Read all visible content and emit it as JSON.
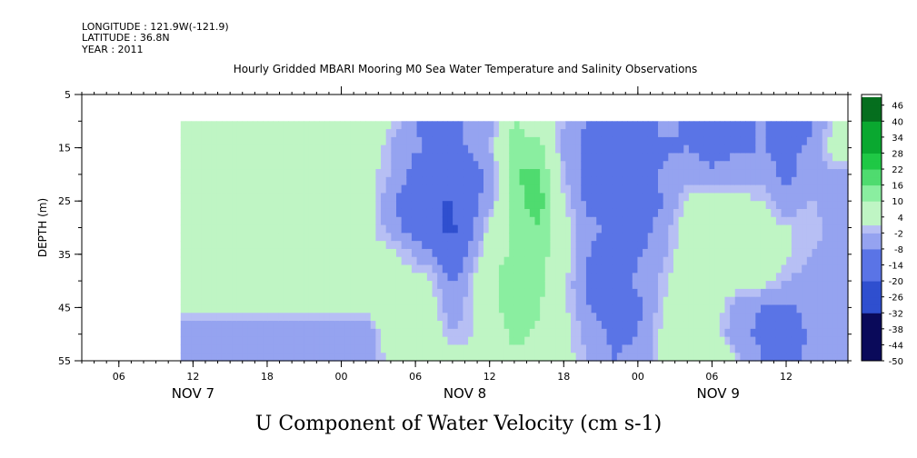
{
  "header": {
    "longitude": "LONGITUDE : 121.9W(-121.9)",
    "latitude": "LATITUDE : 36.8N",
    "year": "YEAR : 2011"
  },
  "chart_data": {
    "type": "heatmap",
    "title": "Hourly Gridded MBARI Mooring M0 Sea Water Temperature and Salinity Observations",
    "xlabel": "U Component of Water Velocity (cm s-1)",
    "ylabel": "DEPTH (m)",
    "x_range_hours": [
      0,
      62
    ],
    "x_ticks": [
      {
        "h": 3,
        "label": "06"
      },
      {
        "h": 9,
        "label": "12"
      },
      {
        "h": 15,
        "label": "18"
      },
      {
        "h": 21,
        "label": "00"
      },
      {
        "h": 27,
        "label": "06"
      },
      {
        "h": 33,
        "label": "12"
      },
      {
        "h": 39,
        "label": "18"
      },
      {
        "h": 45,
        "label": "00"
      },
      {
        "h": 51,
        "label": "06"
      },
      {
        "h": 57,
        "label": "12"
      }
    ],
    "day_labels": [
      {
        "h": 9,
        "label": "NOV  7"
      },
      {
        "h": 31,
        "label": "NOV  8"
      },
      {
        "h": 51.5,
        "label": "NOV  9"
      }
    ],
    "y_range": [
      5,
      55
    ],
    "y_ticks": [
      5,
      15,
      25,
      35,
      45,
      55
    ],
    "data_depth_range": [
      10,
      55
    ],
    "data_time_start_hour": 8,
    "colorbar": {
      "min": -50,
      "max": 50,
      "step": 3,
      "labels": [
        "46",
        "40",
        "34",
        "28",
        "22",
        "16",
        "10",
        "4",
        "-2",
        "-8",
        "-14",
        "-20",
        "-26",
        "-32",
        "-38",
        "-44",
        "-50"
      ]
    },
    "depths": [
      10,
      15,
      20,
      25,
      30,
      35,
      40,
      45,
      50,
      55
    ],
    "times": [
      8,
      14,
      20,
      23,
      25,
      28,
      30,
      33,
      35,
      37,
      39,
      41,
      43,
      45,
      47,
      49,
      51,
      53,
      55,
      57,
      59,
      61
    ],
    "values": [
      [
        4,
        4,
        1,
        8,
        2,
        -12,
        -9,
        -6,
        10,
        4,
        -2,
        -9,
        -11,
        -14,
        -5,
        -9,
        -12,
        -11,
        -7,
        -13,
        -9,
        2
      ],
      [
        5,
        3,
        2,
        10,
        -3,
        -9,
        -11,
        -2,
        14,
        12,
        -3,
        -10,
        -12,
        -16,
        -10,
        -8,
        -12,
        -9,
        -8,
        -10,
        -7,
        4
      ],
      [
        4,
        5,
        3,
        3,
        -2,
        -16,
        -18,
        -6,
        16,
        17,
        -2,
        -12,
        -14,
        -18,
        -6,
        -4,
        -6,
        -5,
        -4,
        -10,
        -4,
        -3
      ],
      [
        2,
        1,
        2,
        4,
        -6,
        -20,
        -20,
        -4,
        14,
        19,
        2,
        -10,
        -12,
        -17,
        -8,
        2,
        4,
        3,
        1,
        -6,
        -2,
        -4
      ],
      [
        3,
        3,
        2,
        3,
        -4,
        -18,
        -22,
        2,
        12,
        16,
        4,
        -6,
        -10,
        -12,
        -5,
        4,
        5,
        6,
        5,
        1,
        1,
        -6
      ],
      [
        4,
        1,
        2,
        2,
        3,
        -6,
        -18,
        6,
        11,
        13,
        5,
        -8,
        -12,
        -9,
        -3,
        5,
        7,
        9,
        6,
        2,
        -2,
        -3
      ],
      [
        3,
        3,
        2,
        3,
        5,
        3,
        -8,
        8,
        16,
        12,
        3,
        -10,
        -14,
        -6,
        -1,
        6,
        8,
        4,
        3,
        -2,
        -4,
        -4
      ],
      [
        3,
        3,
        2,
        2,
        6,
        5,
        -6,
        6,
        15,
        11,
        2,
        -8,
        -12,
        -10,
        1,
        6,
        5,
        -4,
        -8,
        -10,
        -6,
        -5
      ],
      [
        -6,
        -6,
        -6,
        -6,
        5,
        6,
        -2,
        4,
        12,
        9,
        4,
        -4,
        -10,
        -8,
        2,
        5,
        4,
        -6,
        -10,
        -12,
        -7,
        -4
      ],
      [
        -8,
        -8,
        -8,
        -7,
        4,
        5,
        4,
        3,
        8,
        6,
        3,
        -2,
        -8,
        -6,
        2,
        6,
        8,
        1,
        -8,
        -10,
        -6,
        -4
      ]
    ]
  }
}
